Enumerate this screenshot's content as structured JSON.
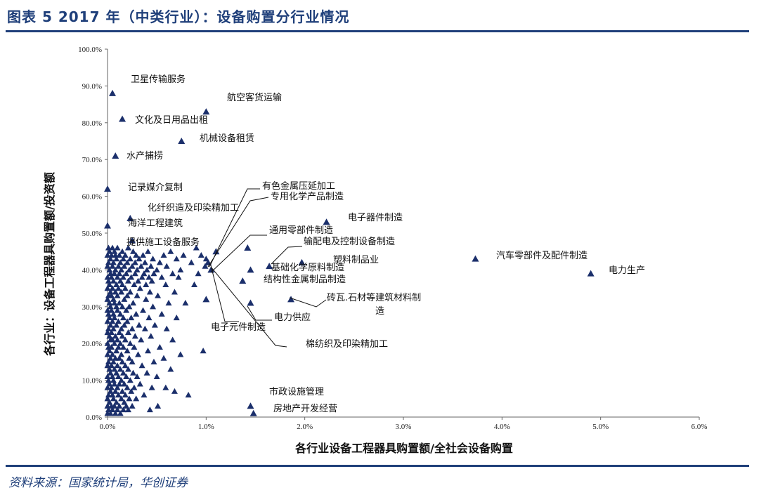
{
  "header": {
    "title": "图表 5   2017 年（中类行业）：设备购置分行业情况"
  },
  "footer": {
    "source": "资料来源：国家统计局，华创证券"
  },
  "colors": {
    "accent": "#1f3f7a",
    "marker": "#1b2f6b"
  },
  "chart_data": {
    "type": "scatter",
    "marker": "triangle",
    "xlabel": "各行业设备工程器具购置额/全社会设备购置",
    "ylabel": "各行业：设备工程器具购置额/投资额",
    "xlim": [
      0,
      6
    ],
    "ylim": [
      0,
      100
    ],
    "x_unit": "%",
    "y_unit": "%",
    "x_ticks": [
      "0.0%",
      "1.0%",
      "2.0%",
      "3.0%",
      "4.0%",
      "5.0%",
      "6.0%"
    ],
    "y_ticks": [
      "0.0%",
      "10.0%",
      "20.0%",
      "30.0%",
      "40.0%",
      "50.0%",
      "60.0%",
      "70.0%",
      "80.0%",
      "90.0%",
      "100.0%"
    ],
    "labeled_points": [
      {
        "label": "卫星传输服务",
        "x": 0.05,
        "y": 88
      },
      {
        "label": "航空客货运输",
        "x": 1.0,
        "y": 83
      },
      {
        "label": "文化及日用品出租",
        "x": 0.15,
        "y": 81
      },
      {
        "label": "机械设备租赁",
        "x": 0.75,
        "y": 75
      },
      {
        "label": "水产捕捞",
        "x": 0.08,
        "y": 71
      },
      {
        "label": "记录媒介复制",
        "x": 0.0,
        "y": 62
      },
      {
        "label": "有色金属压延加工",
        "x": 1.1,
        "y": 45
      },
      {
        "label": "专用化学产品制造",
        "x": 1.05,
        "y": 40
      },
      {
        "label": "化纤织造及印染精加工",
        "x": 0.23,
        "y": 54
      },
      {
        "label": "海洋工程建筑",
        "x": 0.0,
        "y": 52
      },
      {
        "label": "电子器件制造",
        "x": 2.22,
        "y": 53
      },
      {
        "label": "通用零部件制造",
        "x": 1.02,
        "y": 42
      },
      {
        "label": "提供施工设备服务",
        "x": 0.25,
        "y": 48
      },
      {
        "label": "输配电及控制设备制造",
        "x": 1.64,
        "y": 41
      },
      {
        "label": "汽车零部件及配件制造",
        "x": 3.73,
        "y": 43
      },
      {
        "label": "塑料制品业",
        "x": 1.97,
        "y": 42
      },
      {
        "label": "电力生产",
        "x": 4.9,
        "y": 39
      },
      {
        "label": "基础化学原料制造",
        "x": 1.45,
        "y": 40
      },
      {
        "label": "结构性金属制品制造",
        "x": 1.37,
        "y": 37
      },
      {
        "label": "砖瓦、石材等建筑材料制造",
        "x": 1.86,
        "y": 32
      },
      {
        "label": "电力供应",
        "x": 1.45,
        "y": 31
      },
      {
        "label": "电子元件制造",
        "x": 1.0,
        "y": 32
      },
      {
        "label": "棉纺织及印染精加工",
        "x": 1.42,
        "y": 46
      },
      {
        "label": "市政设施管理",
        "x": 1.45,
        "y": 3
      },
      {
        "label": "房地产开发经营",
        "x": 1.48,
        "y": 1
      }
    ],
    "annotations": [
      "卫星传输服务",
      "航空客货运输",
      "文化及日用品出租",
      "机械设备租赁",
      "水产捕捞",
      "记录媒介复制",
      "有色金属压延加工",
      "专用化学产品制造",
      "化纤织造及印染精加工",
      "海洋工程建筑",
      "电子器件制造",
      "通用零部件制造",
      "提供施工设备服务",
      "输配电及控制设备制造",
      "汽车零部件及配件制造",
      "塑料制品业",
      "电力生产",
      "基础化学原料制造",
      "结构性金属制品制造",
      "砖瓦.石材等建筑材料制",
      "造",
      "电力供应",
      "电子元件制造",
      "棉纺织及印染精加工",
      "市政设施管理",
      "房地产开发经营"
    ],
    "cluster_points": [
      [
        0.0,
        1
      ],
      [
        0.0,
        3
      ],
      [
        0.0,
        5
      ],
      [
        0.0,
        8
      ],
      [
        0.0,
        11
      ],
      [
        0.0,
        14
      ],
      [
        0.0,
        17
      ],
      [
        0.0,
        20
      ],
      [
        0.0,
        23
      ],
      [
        0.0,
        26
      ],
      [
        0.0,
        29
      ],
      [
        0.0,
        32
      ],
      [
        0.0,
        35
      ],
      [
        0.0,
        38
      ],
      [
        0.0,
        41
      ],
      [
        0.0,
        44
      ],
      [
        0.01,
        2
      ],
      [
        0.01,
        6
      ],
      [
        0.01,
        10
      ],
      [
        0.01,
        15
      ],
      [
        0.01,
        19
      ],
      [
        0.01,
        24
      ],
      [
        0.01,
        28
      ],
      [
        0.01,
        33
      ],
      [
        0.01,
        37
      ],
      [
        0.01,
        42
      ],
      [
        0.01,
        46
      ],
      [
        0.02,
        4
      ],
      [
        0.02,
        9
      ],
      [
        0.02,
        13
      ],
      [
        0.02,
        18
      ],
      [
        0.02,
        22
      ],
      [
        0.02,
        27
      ],
      [
        0.02,
        31
      ],
      [
        0.02,
        36
      ],
      [
        0.02,
        40
      ],
      [
        0.02,
        45
      ],
      [
        0.03,
        1
      ],
      [
        0.03,
        7
      ],
      [
        0.03,
        12
      ],
      [
        0.03,
        16
      ],
      [
        0.03,
        21
      ],
      [
        0.03,
        25
      ],
      [
        0.03,
        30
      ],
      [
        0.03,
        34
      ],
      [
        0.03,
        39
      ],
      [
        0.03,
        43
      ],
      [
        0.04,
        3
      ],
      [
        0.04,
        8
      ],
      [
        0.04,
        14
      ],
      [
        0.04,
        19
      ],
      [
        0.04,
        23
      ],
      [
        0.04,
        29
      ],
      [
        0.04,
        33
      ],
      [
        0.04,
        38
      ],
      [
        0.04,
        44
      ],
      [
        0.05,
        2
      ],
      [
        0.05,
        6
      ],
      [
        0.05,
        11
      ],
      [
        0.05,
        17
      ],
      [
        0.05,
        21
      ],
      [
        0.05,
        26
      ],
      [
        0.05,
        35
      ],
      [
        0.05,
        41
      ],
      [
        0.05,
        46
      ],
      [
        0.06,
        5
      ],
      [
        0.06,
        10
      ],
      [
        0.06,
        15
      ],
      [
        0.06,
        24
      ],
      [
        0.06,
        28
      ],
      [
        0.06,
        32
      ],
      [
        0.06,
        37
      ],
      [
        0.06,
        42
      ],
      [
        0.07,
        3
      ],
      [
        0.07,
        9
      ],
      [
        0.07,
        13
      ],
      [
        0.07,
        20
      ],
      [
        0.07,
        27
      ],
      [
        0.07,
        31
      ],
      [
        0.07,
        39
      ],
      [
        0.07,
        45
      ],
      [
        0.08,
        1
      ],
      [
        0.08,
        7
      ],
      [
        0.08,
        16
      ],
      [
        0.08,
        22
      ],
      [
        0.08,
        34
      ],
      [
        0.08,
        40
      ],
      [
        0.08,
        44
      ],
      [
        0.09,
        4
      ],
      [
        0.09,
        12
      ],
      [
        0.09,
        18
      ],
      [
        0.09,
        25
      ],
      [
        0.09,
        30
      ],
      [
        0.09,
        36
      ],
      [
        0.09,
        43
      ],
      [
        0.1,
        2
      ],
      [
        0.1,
        8
      ],
      [
        0.1,
        14
      ],
      [
        0.1,
        21
      ],
      [
        0.1,
        29
      ],
      [
        0.1,
        33
      ],
      [
        0.1,
        38
      ],
      [
        0.1,
        46
      ],
      [
        0.11,
        6
      ],
      [
        0.11,
        11
      ],
      [
        0.11,
        19
      ],
      [
        0.11,
        26
      ],
      [
        0.11,
        35
      ],
      [
        0.11,
        41
      ],
      [
        0.12,
        3
      ],
      [
        0.12,
        9
      ],
      [
        0.12,
        16
      ],
      [
        0.12,
        23
      ],
      [
        0.12,
        31
      ],
      [
        0.12,
        39
      ],
      [
        0.12,
        44
      ],
      [
        0.13,
        1
      ],
      [
        0.13,
        13
      ],
      [
        0.13,
        20
      ],
      [
        0.13,
        28
      ],
      [
        0.13,
        37
      ],
      [
        0.13,
        42
      ],
      [
        0.14,
        5
      ],
      [
        0.14,
        10
      ],
      [
        0.14,
        17
      ],
      [
        0.14,
        24
      ],
      [
        0.14,
        34
      ],
      [
        0.14,
        40
      ],
      [
        0.15,
        7
      ],
      [
        0.15,
        15
      ],
      [
        0.15,
        22
      ],
      [
        0.15,
        30
      ],
      [
        0.15,
        36
      ],
      [
        0.15,
        45
      ],
      [
        0.16,
        2
      ],
      [
        0.16,
        12
      ],
      [
        0.16,
        19
      ],
      [
        0.16,
        27
      ],
      [
        0.16,
        38
      ],
      [
        0.16,
        43
      ],
      [
        0.17,
        4
      ],
      [
        0.17,
        9
      ],
      [
        0.17,
        25
      ],
      [
        0.17,
        32
      ],
      [
        0.17,
        41
      ],
      [
        0.18,
        6
      ],
      [
        0.18,
        14
      ],
      [
        0.18,
        21
      ],
      [
        0.18,
        35
      ],
      [
        0.18,
        44
      ],
      [
        0.19,
        3
      ],
      [
        0.19,
        11
      ],
      [
        0.19,
        29
      ],
      [
        0.19,
        39
      ],
      [
        0.2,
        8
      ],
      [
        0.2,
        18
      ],
      [
        0.2,
        26
      ],
      [
        0.2,
        33
      ],
      [
        0.2,
        42
      ],
      [
        0.21,
        2
      ],
      [
        0.21,
        13
      ],
      [
        0.21,
        23
      ],
      [
        0.21,
        37
      ],
      [
        0.21,
        46
      ],
      [
        0.22,
        5
      ],
      [
        0.22,
        16
      ],
      [
        0.22,
        30
      ],
      [
        0.22,
        40
      ],
      [
        0.23,
        10
      ],
      [
        0.23,
        20
      ],
      [
        0.23,
        34
      ],
      [
        0.23,
        43
      ],
      [
        0.24,
        7
      ],
      [
        0.24,
        27
      ],
      [
        0.24,
        38
      ],
      [
        0.25,
        3
      ],
      [
        0.25,
        15
      ],
      [
        0.25,
        24
      ],
      [
        0.25,
        41
      ],
      [
        0.26,
        12
      ],
      [
        0.26,
        31
      ],
      [
        0.26,
        45
      ],
      [
        0.27,
        8
      ],
      [
        0.27,
        19
      ],
      [
        0.27,
        36
      ],
      [
        0.28,
        22
      ],
      [
        0.28,
        39
      ],
      [
        0.28,
        42
      ],
      [
        0.29,
        5
      ],
      [
        0.29,
        28
      ],
      [
        0.29,
        44
      ],
      [
        0.3,
        11
      ],
      [
        0.3,
        33
      ],
      [
        0.3,
        40
      ],
      [
        0.31,
        17
      ],
      [
        0.31,
        37
      ],
      [
        0.32,
        25
      ],
      [
        0.32,
        43
      ],
      [
        0.33,
        9
      ],
      [
        0.33,
        35
      ],
      [
        0.34,
        21
      ],
      [
        0.34,
        41
      ],
      [
        0.35,
        14
      ],
      [
        0.35,
        38
      ],
      [
        0.36,
        29
      ],
      [
        0.36,
        44
      ],
      [
        0.37,
        6
      ],
      [
        0.37,
        39
      ],
      [
        0.38,
        24
      ],
      [
        0.38,
        42
      ],
      [
        0.39,
        32
      ],
      [
        0.39,
        36
      ],
      [
        0.4,
        12
      ],
      [
        0.4,
        40
      ],
      [
        0.41,
        18
      ],
      [
        0.41,
        45
      ],
      [
        0.42,
        27
      ],
      [
        0.42,
        38
      ],
      [
        0.43,
        2
      ],
      [
        0.43,
        34
      ],
      [
        0.44,
        22
      ],
      [
        0.44,
        41
      ],
      [
        0.45,
        8
      ],
      [
        0.45,
        37
      ],
      [
        0.46,
        30
      ],
      [
        0.46,
        43
      ],
      [
        0.47,
        15
      ],
      [
        0.47,
        39
      ],
      [
        0.48,
        25
      ],
      [
        0.5,
        11
      ],
      [
        0.5,
        40
      ],
      [
        0.51,
        3
      ],
      [
        0.51,
        33
      ],
      [
        0.53,
        19
      ],
      [
        0.53,
        42
      ],
      [
        0.55,
        28
      ],
      [
        0.55,
        38
      ],
      [
        0.57,
        16
      ],
      [
        0.57,
        44
      ],
      [
        0.59,
        8
      ],
      [
        0.59,
        36
      ],
      [
        0.6,
        24
      ],
      [
        0.6,
        41
      ],
      [
        0.62,
        31
      ],
      [
        0.64,
        13
      ],
      [
        0.64,
        45
      ],
      [
        0.66,
        21
      ],
      [
        0.66,
        39
      ],
      [
        0.68,
        7
      ],
      [
        0.68,
        34
      ],
      [
        0.7,
        27
      ],
      [
        0.7,
        43
      ],
      [
        0.72,
        38
      ],
      [
        0.74,
        17
      ],
      [
        0.74,
        40
      ],
      [
        0.77,
        44
      ],
      [
        0.79,
        31
      ],
      [
        0.82,
        6
      ],
      [
        0.85,
        42
      ],
      [
        0.88,
        36
      ],
      [
        0.9,
        46
      ],
      [
        0.92,
        39
      ],
      [
        0.95,
        44
      ],
      [
        0.97,
        18
      ],
      [
        0.99,
        41
      ],
      [
        1.0,
        43
      ]
    ]
  }
}
